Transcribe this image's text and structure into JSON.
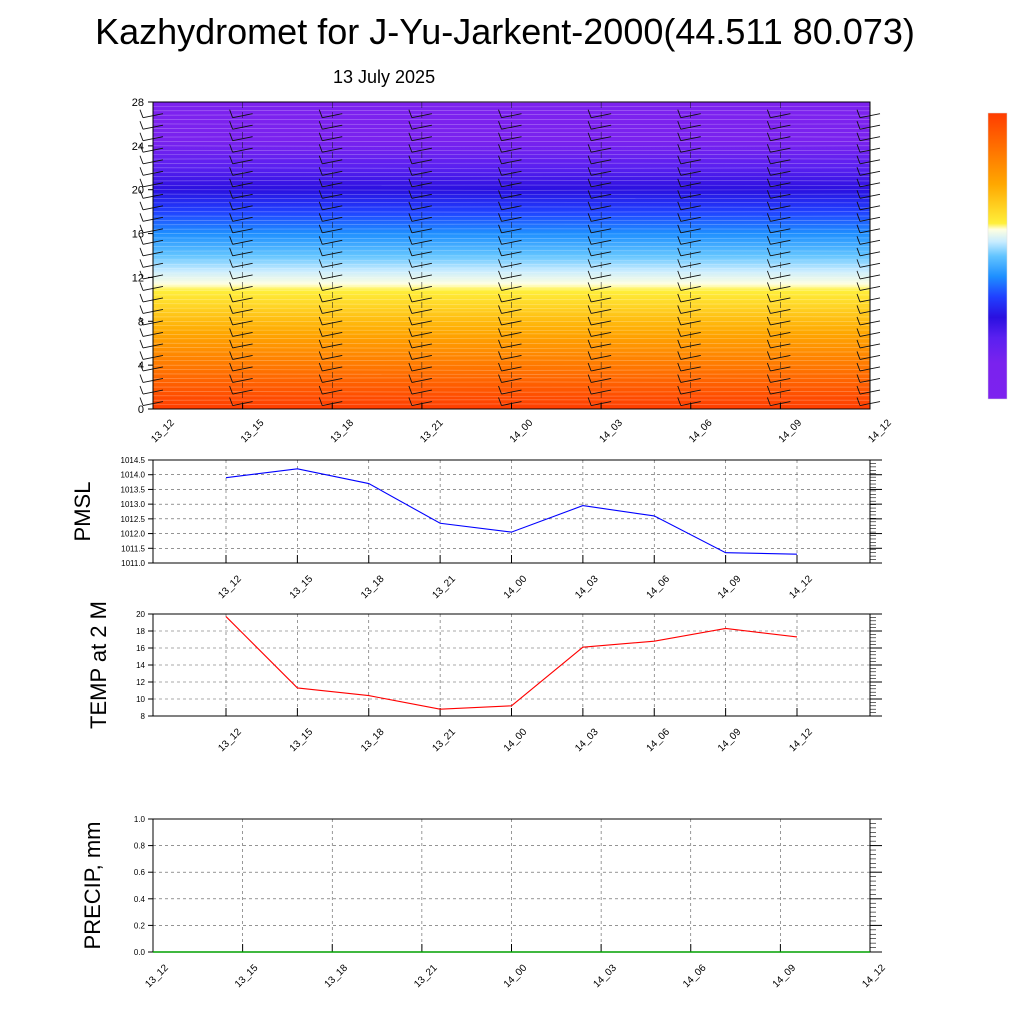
{
  "title": "Kazhydromet for J-Yu-Jarkent-2000(44.511 80.073)",
  "subtitle": "13 July 2025",
  "time_labels": [
    "13_12",
    "13_15",
    "13_18",
    "13_21",
    "14_00",
    "14_03",
    "14_06",
    "14_09",
    "14_12"
  ],
  "colors": {
    "pmsl_line": "#0000ff",
    "temp_line": "#ff0000",
    "precip_line": "#00a000",
    "grid": "#555555"
  },
  "chart_data": [
    {
      "type": "heatmap",
      "title": "",
      "xlabel": "",
      "ylabel": "",
      "x": [
        "13_12",
        "13_15",
        "13_18",
        "13_21",
        "14_00",
        "14_03",
        "14_06",
        "14_09",
        "14_12"
      ],
      "y_ticks": [
        "0",
        "4",
        "8",
        "12",
        "16",
        "20",
        "24",
        "28"
      ],
      "ylim": [
        0,
        28
      ],
      "colorscale_by_level": [
        {
          "level": 0,
          "color": "#ff3c00"
        },
        {
          "level": 3,
          "color": "#ff6a00"
        },
        {
          "level": 7,
          "color": "#ffa800"
        },
        {
          "level": 10.8,
          "color": "#ffef3a"
        },
        {
          "level": 11.4,
          "color": "#ffffe0"
        },
        {
          "level": 12.6,
          "color": "#c8ecff"
        },
        {
          "level": 14,
          "color": "#62c4ff"
        },
        {
          "level": 16,
          "color": "#1e8fff"
        },
        {
          "level": 18,
          "color": "#2040ff"
        },
        {
          "level": 20,
          "color": "#2a10e0"
        },
        {
          "level": 22,
          "color": "#5a20f0"
        },
        {
          "level": 24.5,
          "color": "#7a22ee"
        },
        {
          "level": 28,
          "color": "#7d22ef"
        }
      ],
      "wind_barbs": true,
      "colorbar": "right"
    },
    {
      "type": "line",
      "ylabel": "PMSL",
      "categories": [
        "13_12",
        "13_15",
        "13_18",
        "13_21",
        "14_00",
        "14_03",
        "14_06",
        "14_09",
        "14_12"
      ],
      "series": [
        {
          "values": [
            1013.9,
            1014.2,
            1013.7,
            1012.35,
            1012.05,
            1012.95,
            1012.6,
            1011.35,
            1011.3
          ]
        }
      ],
      "y_ticks": [
        "1011.0",
        "1011.5",
        "1012.0",
        "1012.5",
        "1013.0",
        "1013.5",
        "1014.0",
        "1014.5"
      ],
      "ylim": [
        1011.0,
        1014.5
      ],
      "grid": true
    },
    {
      "type": "line",
      "ylabel": "TEMP at 2 M",
      "categories": [
        "13_12",
        "13_15",
        "13_18",
        "13_21",
        "14_00",
        "14_03",
        "14_06",
        "14_09",
        "14_12"
      ],
      "series": [
        {
          "values": [
            19.7,
            11.3,
            10.4,
            8.8,
            9.2,
            16.1,
            16.8,
            18.3,
            17.3
          ]
        }
      ],
      "y_ticks": [
        "8",
        "10",
        "12",
        "14",
        "16",
        "18",
        "20"
      ],
      "ylim": [
        8,
        20
      ],
      "grid": true
    },
    {
      "type": "line",
      "ylabel": "PRECIP, mm",
      "categories": [
        "13_12",
        "13_15",
        "13_18",
        "13_21",
        "14_00",
        "14_03",
        "14_06",
        "14_09",
        "14_12"
      ],
      "series": [
        {
          "values": [
            0,
            0,
            0,
            0,
            0,
            0,
            0,
            0,
            0
          ]
        }
      ],
      "y_ticks": [
        "0.0",
        "0.2",
        "0.4",
        "0.6",
        "0.8",
        "1.0"
      ],
      "ylim": [
        0.0,
        1.0
      ],
      "grid": true
    }
  ]
}
